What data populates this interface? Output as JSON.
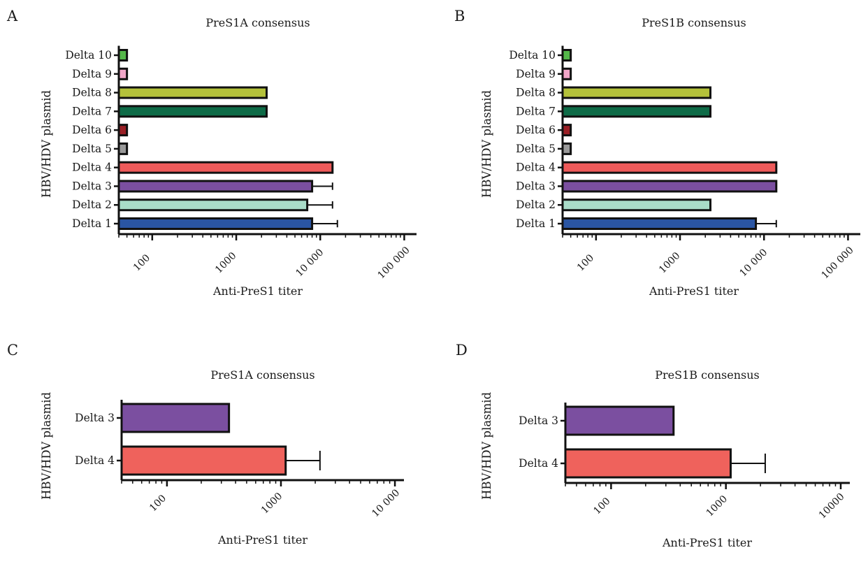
{
  "chart_data": [
    {
      "panel": "A",
      "type": "bar",
      "orientation": "horizontal",
      "title": "PreS1A consensus",
      "xlabel": "Anti-PreS1 titer",
      "ylabel": "HBV/HDV plasmid",
      "xscale": "log",
      "xlim": [
        40,
        140000
      ],
      "xticks": [
        100,
        1000,
        10000,
        100000
      ],
      "xtick_labels": [
        "100",
        "1000",
        "10 000",
        "100 000"
      ],
      "categories": [
        "Delta 1",
        "Delta 2",
        "Delta 3",
        "Delta 4",
        "Delta 5",
        "Delta 6",
        "Delta 7",
        "Delta 8",
        "Delta 9",
        "Delta 10"
      ],
      "values": [
        8000,
        7000,
        8000,
        14000,
        50,
        50,
        2300,
        2300,
        50,
        50
      ],
      "error_upper": [
        16000,
        14000,
        14000,
        null,
        null,
        null,
        null,
        null,
        null,
        null
      ],
      "colors": [
        "#2a55a3",
        "#a9dcc8",
        "#7b4fa0",
        "#ee5a5a",
        "#9a9a9a",
        "#9a1f25",
        "#0e6b47",
        "#b4c13a",
        "#f2a6c8",
        "#55b84a"
      ]
    },
    {
      "panel": "B",
      "type": "bar",
      "orientation": "horizontal",
      "title": "PreS1B consensus",
      "xlabel": "Anti-PreS1 titer",
      "ylabel": "HBV/HDV plasmid",
      "xscale": "log",
      "xlim": [
        40,
        140000
      ],
      "xticks": [
        100,
        1000,
        10000,
        100000
      ],
      "xtick_labels": [
        "100",
        "1000",
        "10 000",
        "100 000"
      ],
      "categories": [
        "Delta 1",
        "Delta 2",
        "Delta 3",
        "Delta 4",
        "Delta 5",
        "Delta 6",
        "Delta 7",
        "Delta 8",
        "Delta 9",
        "Delta 10"
      ],
      "values": [
        8000,
        2300,
        14000,
        14000,
        50,
        50,
        2300,
        2300,
        50,
        50
      ],
      "error_upper": [
        14000,
        null,
        null,
        null,
        null,
        null,
        null,
        null,
        null,
        null
      ],
      "colors": [
        "#2a55a3",
        "#a9dcc8",
        "#7b4fa0",
        "#ee5a5a",
        "#9a9a9a",
        "#9a1f25",
        "#0e6b47",
        "#b4c13a",
        "#f2a6c8",
        "#55b84a"
      ]
    },
    {
      "panel": "C",
      "type": "bar",
      "orientation": "horizontal",
      "title": "PreS1A consensus",
      "xlabel": "Anti-PreS1 titer",
      "ylabel": "HBV/HDV plasmid",
      "xscale": "log",
      "xlim": [
        40,
        12000
      ],
      "xticks": [
        100,
        1000,
        10000
      ],
      "xtick_labels": [
        "100",
        "1000",
        "10 000"
      ],
      "categories": [
        "Delta 4",
        "Delta 3"
      ],
      "values": [
        1100,
        350
      ],
      "error_upper": [
        2200,
        null
      ],
      "colors": [
        "#ef625c",
        "#7b4fa0"
      ]
    },
    {
      "panel": "D",
      "type": "bar",
      "orientation": "horizontal",
      "title": "PreS1B consensus",
      "xlabel": "Anti-PreS1 titer",
      "ylabel": "HBV/HDV plasmid",
      "xscale": "log",
      "xlim": [
        40,
        12000
      ],
      "xticks": [
        100,
        1000,
        10000
      ],
      "xtick_labels": [
        "100",
        "1000",
        "10000"
      ],
      "categories": [
        "Delta 4",
        "Delta 3"
      ],
      "values": [
        1100,
        350
      ],
      "error_upper": [
        2200,
        null
      ],
      "colors": [
        "#ef625c",
        "#7b4fa0"
      ]
    }
  ]
}
